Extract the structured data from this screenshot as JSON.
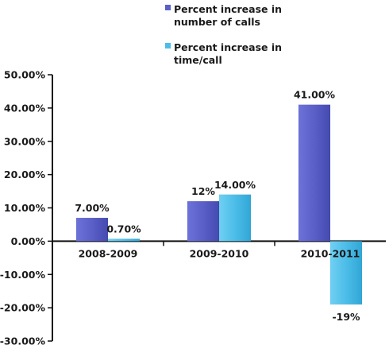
{
  "chart_data": {
    "type": "bar",
    "categories": [
      "2008-2009",
      "2009-2010",
      "2010-2011"
    ],
    "series": [
      {
        "name": "Percent increase in number of calls",
        "name_lines": [
          "Percent increase in",
          "number of calls"
        ],
        "values": [
          7.0,
          12.0,
          41.0
        ],
        "labels": [
          "7.00%",
          "12%",
          "41.00%"
        ],
        "color": "#5a5fc8"
      },
      {
        "name": "Percent increase in time/call",
        "name_lines": [
          "Percent increase in",
          "time/call"
        ],
        "values": [
          0.7,
          14.0,
          -19.0
        ],
        "labels": [
          "0.70%",
          "14.00%",
          "-19%"
        ],
        "color": "#4cbde8"
      }
    ],
    "yticks": [
      "50.00%",
      "40.00%",
      "30.00%",
      "20.00%",
      "10.00%",
      "0.00%",
      "-10.00%",
      "-20.00%",
      "-30.00%"
    ],
    "ylim": [
      -30,
      50
    ],
    "grid": false,
    "legend": "top-right"
  }
}
